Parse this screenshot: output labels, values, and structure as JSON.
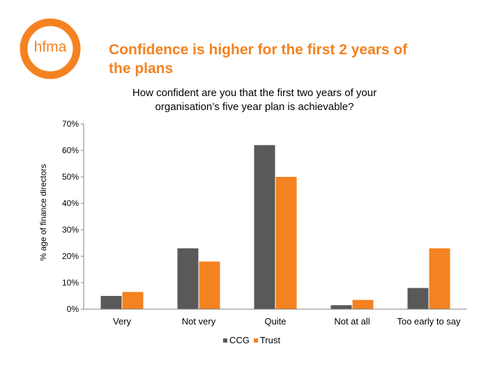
{
  "logo": {
    "text": "hfma",
    "color": "#f58220"
  },
  "slide": {
    "title_line1": "Confidence is higher for the first 2 years of",
    "title_line2": "the plans"
  },
  "chart_data": {
    "type": "bar",
    "title_line1": "How confident are you that the first two years of your",
    "title_line2": "organisation’s five year plan is achievable?",
    "ylabel": "% age of finance directors",
    "xlabel": "",
    "categories": [
      "Very",
      "Not very",
      "Quite",
      "Not at all",
      "Too early to say"
    ],
    "series": [
      {
        "name": "CCG",
        "color": "#595959",
        "values": [
          5,
          23,
          62,
          1.5,
          8
        ]
      },
      {
        "name": "Trust",
        "color": "#f58220",
        "values": [
          6.5,
          18,
          50,
          3.5,
          23
        ]
      }
    ],
    "ylim": [
      0,
      70
    ],
    "yticks": [
      0,
      10,
      20,
      30,
      40,
      50,
      60,
      70
    ],
    "ytick_labels": [
      "0%",
      "10%",
      "20%",
      "30%",
      "40%",
      "50%",
      "60%",
      "70%"
    ],
    "legend": "bottom-center",
    "grid": false
  }
}
